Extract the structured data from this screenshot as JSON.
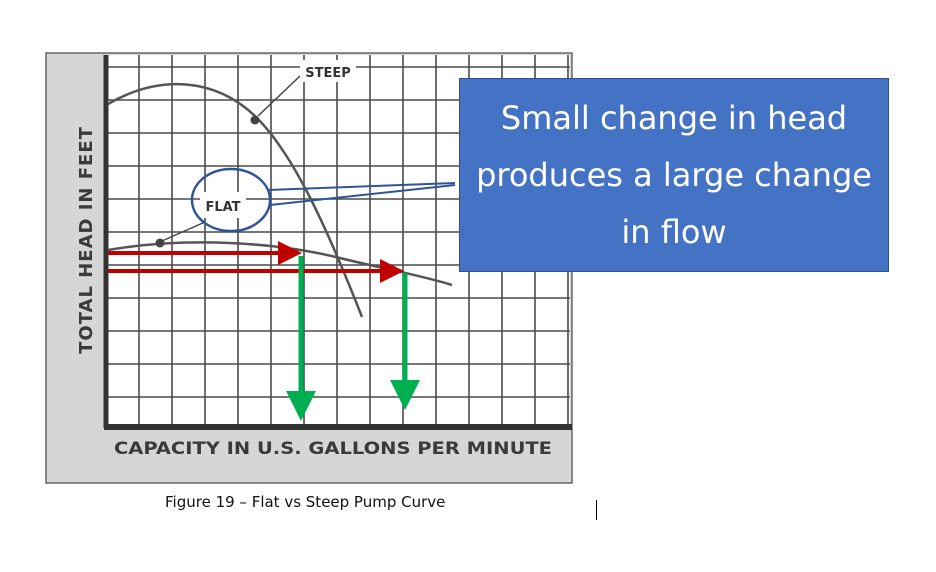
{
  "figure": {
    "y_axis_label": "TOTAL HEAD IN FEET",
    "x_axis_label": "CAPACITY IN U.S. GALLONS PER MINUTE",
    "curve_labels": {
      "steep": "STEEP",
      "flat": "FLAT"
    },
    "caption": "Figure 19 – Flat vs Steep Pump Curve"
  },
  "callout": {
    "text": "Small change in head produces a large change in flow"
  },
  "colors": {
    "callout_fill": "#4472c4",
    "callout_text": "#ffffff",
    "flat_circle": "#2f5597",
    "head_arrows": "#c00000",
    "flow_arrows": "#00b050",
    "curves": "#555555",
    "grid_background": "#d6d6d6"
  },
  "icons": {
    "text_cursor": "text-cursor-icon"
  }
}
